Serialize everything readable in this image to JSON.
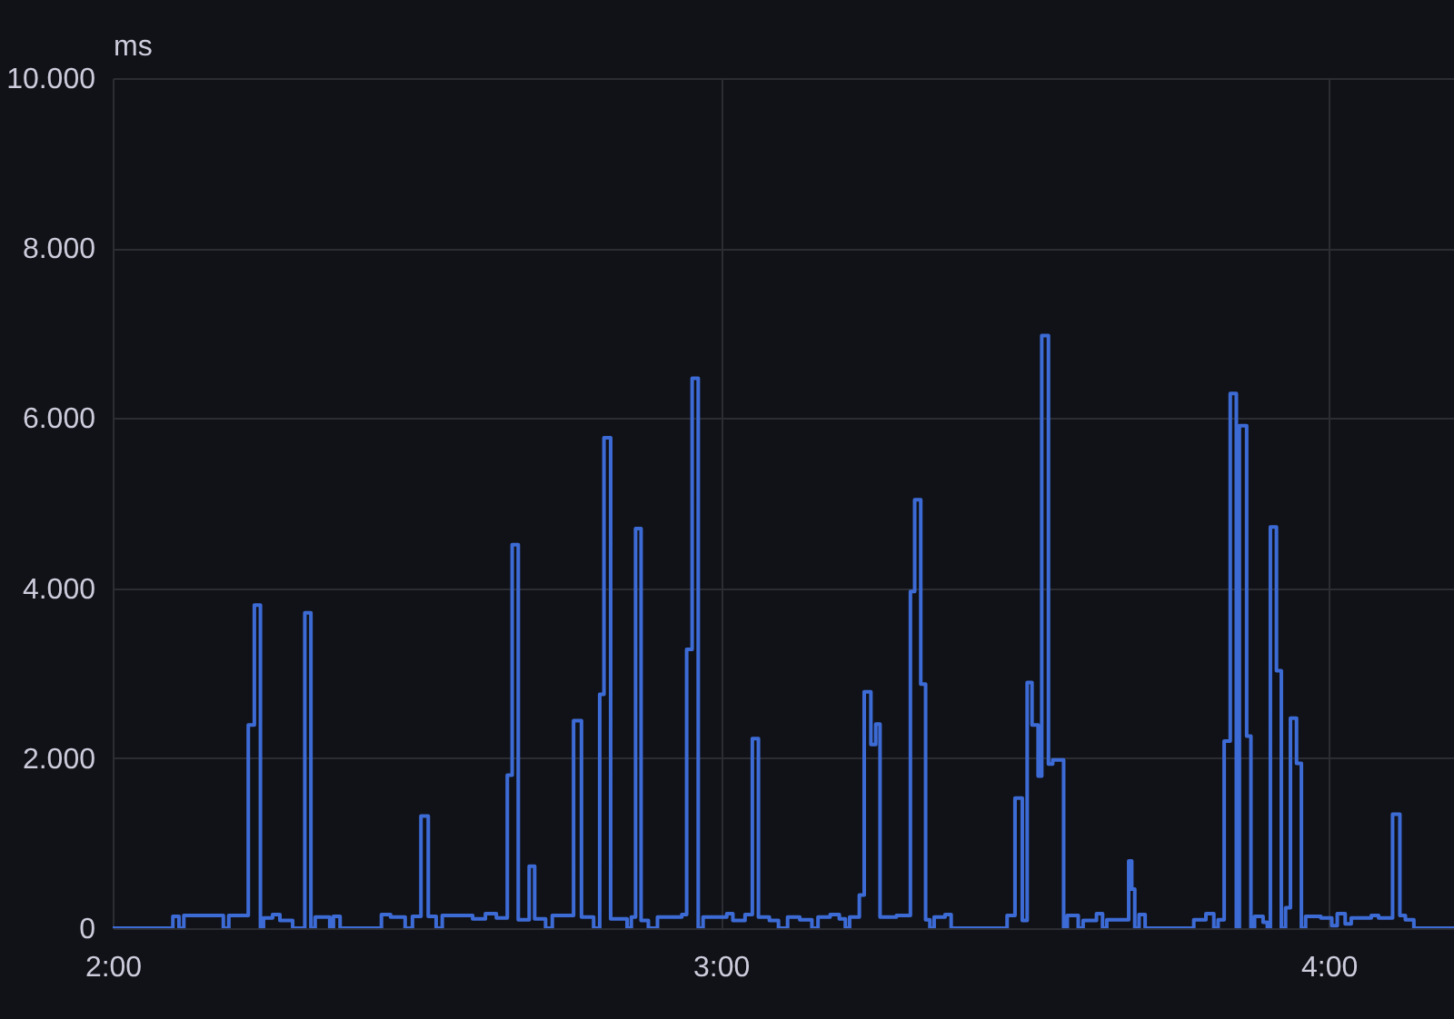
{
  "chart_data": {
    "type": "step",
    "ylabel": "ms",
    "x": [
      2.0,
      2.099,
      2.109,
      2.117,
      2.182,
      2.191,
      2.223,
      2.233,
      2.243,
      2.248,
      2.263,
      2.275,
      2.296,
      2.316,
      2.326,
      2.333,
      2.357,
      2.363,
      2.374,
      2.442,
      2.457,
      2.481,
      2.493,
      2.507,
      2.519,
      2.532,
      2.542,
      2.592,
      2.613,
      2.631,
      2.649,
      2.657,
      2.667,
      2.685,
      2.694,
      2.712,
      2.723,
      2.758,
      2.771,
      2.791,
      2.801,
      2.808,
      2.819,
      2.846,
      2.853,
      2.86,
      2.869,
      2.881,
      2.896,
      2.936,
      2.944,
      2.953,
      2.963,
      2.971,
      3.01,
      3.02,
      3.04,
      3.052,
      3.062,
      3.08,
      3.095,
      3.11,
      3.13,
      3.15,
      3.16,
      3.18,
      3.195,
      3.205,
      3.212,
      3.228,
      3.236,
      3.247,
      3.255,
      3.262,
      3.289,
      3.312,
      3.319,
      3.329,
      3.337,
      3.344,
      3.351,
      3.369,
      3.379,
      3.471,
      3.484,
      3.496,
      3.504,
      3.512,
      3.522,
      3.528,
      3.539,
      3.546,
      3.564,
      3.57,
      3.588,
      3.596,
      3.618,
      3.628,
      3.635,
      3.671,
      3.676,
      3.681,
      3.688,
      3.698,
      3.778,
      3.798,
      3.811,
      3.818,
      3.828,
      3.838,
      3.848,
      3.853,
      3.865,
      3.872,
      3.878,
      3.892,
      3.899,
      3.904,
      3.914,
      3.922,
      3.929,
      3.937,
      3.947,
      3.955,
      3.962,
      3.987,
      4.005,
      4.014,
      4.027,
      4.037,
      4.07,
      4.082,
      4.105,
      4.117,
      4.126,
      4.14,
      4.206
    ],
    "series": [
      {
        "color": "#3d6bd6",
        "values": [
          0,
          140,
          0,
          150,
          0,
          150,
          2390,
          3800,
          0,
          120,
          160,
          90,
          0,
          3710,
          0,
          130,
          0,
          140,
          0,
          160,
          130,
          0,
          140,
          1320,
          140,
          0,
          150,
          110,
          170,
          120,
          1800,
          4510,
          100,
          730,
          110,
          0,
          150,
          2440,
          130,
          0,
          2750,
          5770,
          110,
          0,
          130,
          4700,
          90,
          0,
          130,
          160,
          3280,
          6470,
          0,
          130,
          170,
          90,
          160,
          2230,
          130,
          90,
          0,
          130,
          100,
          0,
          130,
          160,
          110,
          0,
          130,
          390,
          2780,
          2160,
          2400,
          130,
          150,
          3960,
          5040,
          2870,
          100,
          0,
          130,
          160,
          0,
          150,
          1530,
          90,
          2890,
          2390,
          1790,
          6970,
          1930,
          1980,
          0,
          150,
          0,
          90,
          170,
          0,
          100,
          790,
          460,
          0,
          160,
          0,
          100,
          170,
          0,
          100,
          2200,
          6290,
          0,
          5910,
          2260,
          0,
          140,
          70,
          0,
          4720,
          3030,
          0,
          240,
          2470,
          1940,
          0,
          140,
          120,
          30,
          170,
          50,
          120,
          150,
          120,
          1340,
          150,
          100,
          0,
          0
        ]
      }
    ],
    "xlim": [
      2,
      4.206
    ],
    "xticks": [
      {
        "value": 2,
        "label": "2:00"
      },
      {
        "value": 3,
        "label": "3:00"
      },
      {
        "value": 4,
        "label": "4:00"
      }
    ],
    "ylim": [
      0,
      10000
    ],
    "yticks": [
      0,
      {
        "value": 2000,
        "label": "2.000"
      },
      {
        "value": 4000,
        "label": "4.000"
      },
      {
        "value": 6000,
        "label": "6.000"
      },
      {
        "value": 8000,
        "label": "8.000"
      },
      {
        "value": 10000,
        "label": "10.000"
      }
    ],
    "grid": true
  }
}
